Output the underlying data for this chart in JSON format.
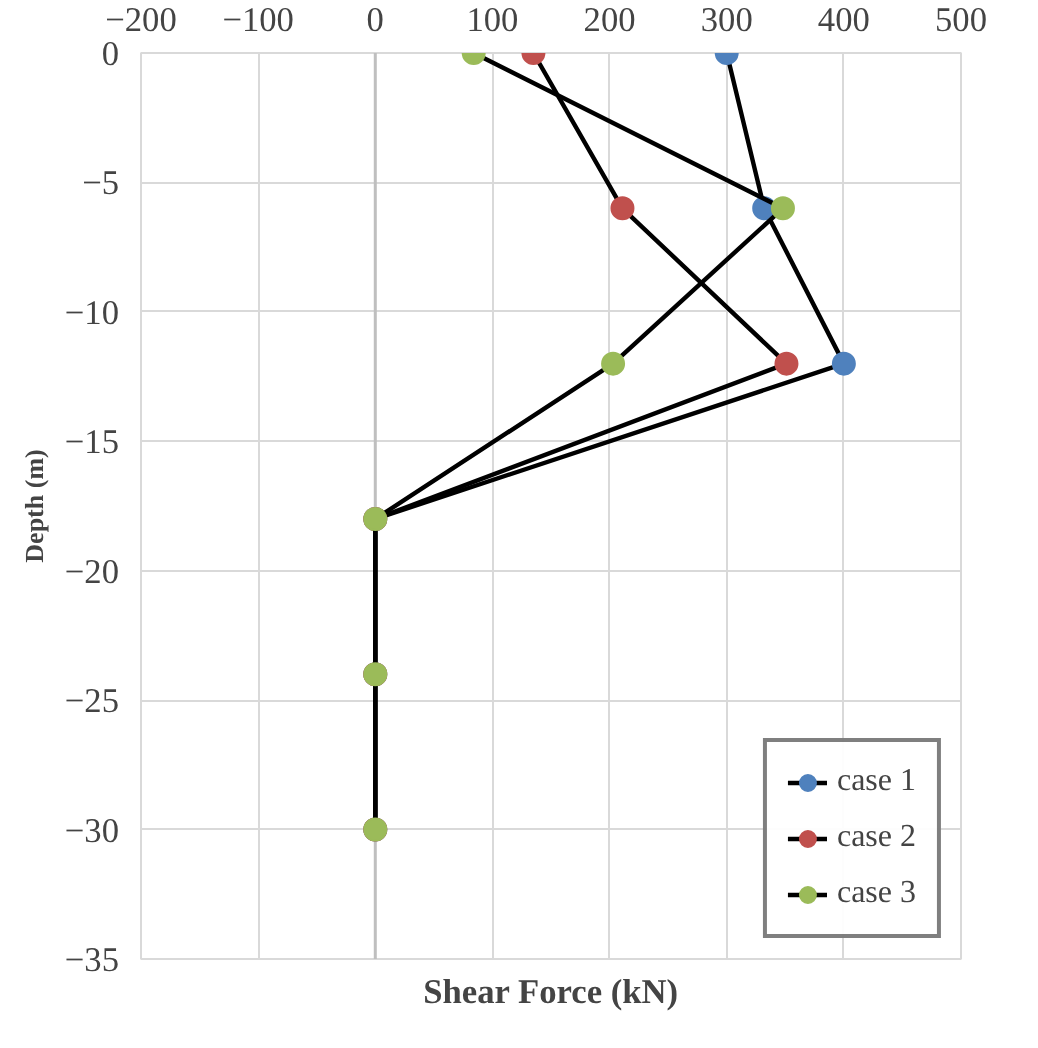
{
  "chart_data": {
    "type": "line",
    "xlabel": "Shear Force (kN)",
    "ylabel": "Depth (m)",
    "xlim": [
      -200,
      500
    ],
    "xticks": [
      -200,
      -100,
      0,
      100,
      200,
      300,
      400,
      500
    ],
    "ylim": [
      -35,
      0
    ],
    "yticks": [
      -35,
      -30,
      -25,
      -20,
      -15,
      -10,
      -5,
      0
    ],
    "grid": true,
    "legend": "bottom right",
    "marker": "circle",
    "orientation": "horizontal",
    "series": [
      {
        "name": "case 1",
        "color": "#000000",
        "colors": [
          "#4f81bd",
          "#4f81bd",
          "#4f81bd",
          "#4f81bd",
          "#4f81bd",
          "#4f81bd"
        ],
        "values": [
          300,
          332,
          400,
          0,
          0,
          0
        ],
        "x": [
          0,
          -6,
          -12,
          -18,
          -24,
          -30
        ]
      },
      {
        "name": "case 2",
        "color": "#000000",
        "colors": [
          "#c0504d",
          "#c0504d",
          "#c0504d",
          "#c0504d",
          "#c0504d",
          "#c0504d"
        ],
        "values": [
          135,
          211,
          351,
          0,
          0,
          0
        ],
        "x": [
          0,
          -6,
          -12,
          -18,
          -24,
          -30
        ]
      },
      {
        "name": "case 3",
        "color": "#000000",
        "colors": [
          "#9bbb59",
          "#9bbb59",
          "#9bbb59",
          "#9bbb59",
          "#9bbb59",
          "#9bbb59"
        ],
        "values": [
          84,
          348,
          203,
          0,
          0,
          0
        ],
        "x": [
          0,
          -6,
          -12,
          -18,
          -24,
          -30
        ]
      }
    ]
  }
}
